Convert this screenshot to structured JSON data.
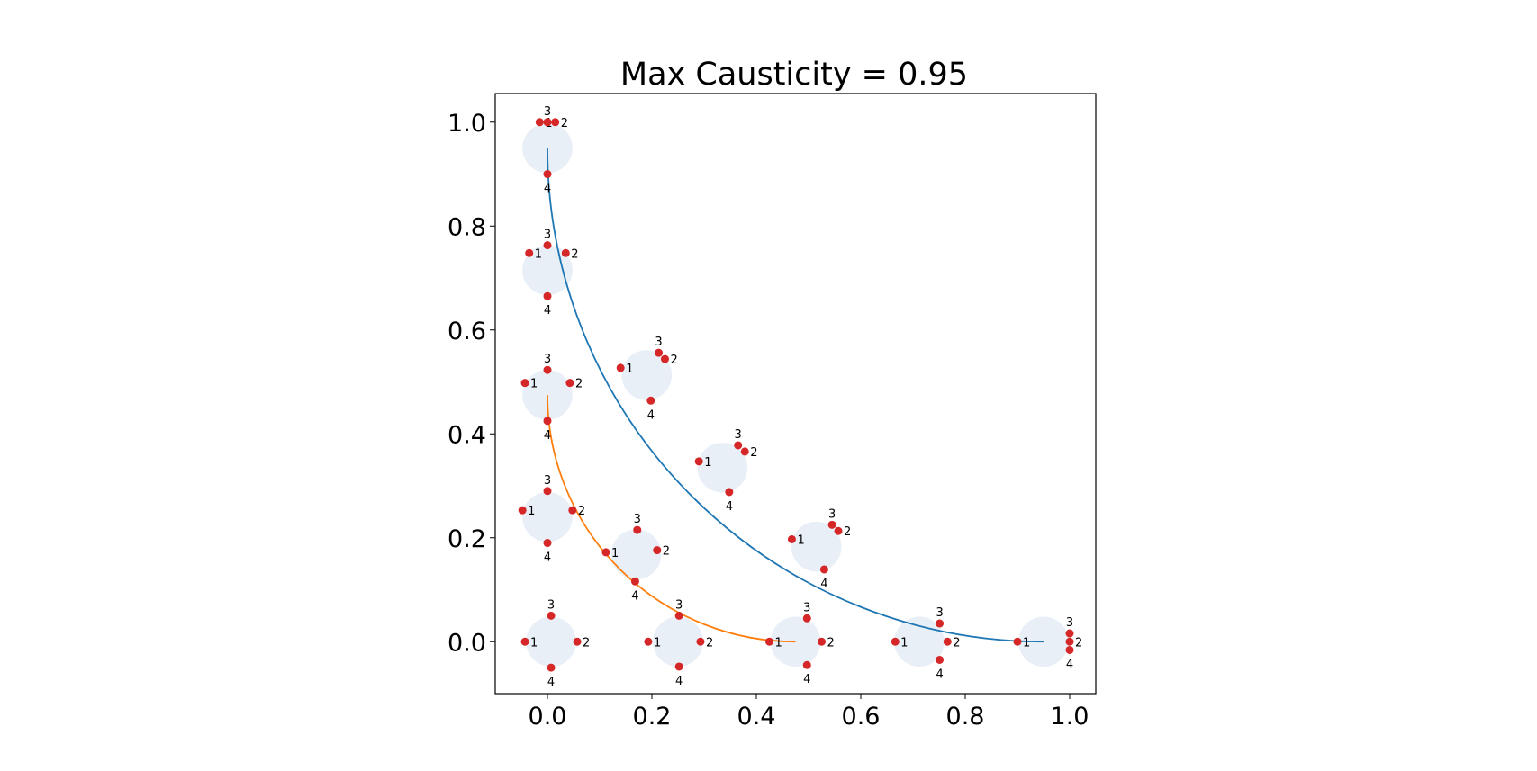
{
  "chart_data": {
    "type": "scatter",
    "title": "Max Causticity = 0.95",
    "xlabel": "",
    "ylabel": "",
    "xlim": [
      -0.1,
      1.05
    ],
    "ylim": [
      -0.1,
      1.055
    ],
    "xticks": [
      "0.0",
      "0.2",
      "0.4",
      "0.6",
      "0.8",
      "1.0"
    ],
    "yticks": [
      "0.0",
      "0.2",
      "0.4",
      "0.6",
      "0.8",
      "1.0"
    ],
    "xtick_values": [
      0,
      0.2,
      0.4,
      0.6,
      0.8,
      1.0
    ],
    "ytick_values": [
      0,
      0.2,
      0.4,
      0.6,
      0.8,
      1.0
    ],
    "grid": false,
    "colors": {
      "curve_outer": "#1f77b4",
      "curve_inner": "#ff7f0e",
      "points": "#d62728",
      "circles": "#e8eff7"
    },
    "curves": [
      {
        "center": [
          0,
          0
        ],
        "radius": 0.95,
        "color": "#1f77b4"
      },
      {
        "center": [
          0,
          0
        ],
        "radius": 0.475,
        "color": "#ff7f0e"
      }
    ],
    "circle_radius": 0.048,
    "groups": [
      {
        "center": [
          0.0,
          0.95
        ],
        "points": [
          {
            "label": "1",
            "x": -0.015,
            "y": 1.0
          },
          {
            "label": "2",
            "x": 0.015,
            "y": 1.0
          },
          {
            "label": "3",
            "x": 0.0,
            "y": 1.0
          },
          {
            "label": "4",
            "x": 0.0,
            "y": 0.9
          }
        ]
      },
      {
        "center": [
          0.0,
          0.715
        ],
        "points": [
          {
            "label": "1",
            "x": -0.035,
            "y": 0.748
          },
          {
            "label": "2",
            "x": 0.035,
            "y": 0.748
          },
          {
            "label": "3",
            "x": 0.0,
            "y": 0.763
          },
          {
            "label": "4",
            "x": 0.0,
            "y": 0.665
          }
        ]
      },
      {
        "center": [
          0.0,
          0.475
        ],
        "points": [
          {
            "label": "1",
            "x": -0.043,
            "y": 0.498
          },
          {
            "label": "2",
            "x": 0.043,
            "y": 0.498
          },
          {
            "label": "3",
            "x": 0.0,
            "y": 0.523
          },
          {
            "label": "4",
            "x": 0.0,
            "y": 0.425
          }
        ]
      },
      {
        "center": [
          0.0,
          0.24
        ],
        "points": [
          {
            "label": "1",
            "x": -0.048,
            "y": 0.253
          },
          {
            "label": "2",
            "x": 0.048,
            "y": 0.253
          },
          {
            "label": "3",
            "x": 0.0,
            "y": 0.29
          },
          {
            "label": "4",
            "x": 0.0,
            "y": 0.19
          }
        ]
      },
      {
        "center": [
          0.007,
          0.0
        ],
        "points": [
          {
            "label": "1",
            "x": -0.043,
            "y": 0.0
          },
          {
            "label": "2",
            "x": 0.057,
            "y": 0.0
          },
          {
            "label": "3",
            "x": 0.007,
            "y": 0.05
          },
          {
            "label": "4",
            "x": 0.007,
            "y": -0.05
          }
        ]
      },
      {
        "center": [
          0.19,
          0.513
        ],
        "points": [
          {
            "label": "1",
            "x": 0.14,
            "y": 0.527
          },
          {
            "label": "2",
            "x": 0.225,
            "y": 0.544
          },
          {
            "label": "3",
            "x": 0.213,
            "y": 0.556
          },
          {
            "label": "4",
            "x": 0.198,
            "y": 0.464
          }
        ]
      },
      {
        "center": [
          0.335,
          0.335
        ],
        "points": [
          {
            "label": "1",
            "x": 0.29,
            "y": 0.347
          },
          {
            "label": "2",
            "x": 0.378,
            "y": 0.366
          },
          {
            "label": "3",
            "x": 0.365,
            "y": 0.378
          },
          {
            "label": "4",
            "x": 0.348,
            "y": 0.288
          }
        ]
      },
      {
        "center": [
          0.17,
          0.168
        ],
        "points": [
          {
            "label": "1",
            "x": 0.112,
            "y": 0.172
          },
          {
            "label": "2",
            "x": 0.21,
            "y": 0.176
          },
          {
            "label": "3",
            "x": 0.172,
            "y": 0.215
          },
          {
            "label": "4",
            "x": 0.168,
            "y": 0.116
          }
        ]
      },
      {
        "center": [
          0.515,
          0.183
        ],
        "points": [
          {
            "label": "1",
            "x": 0.468,
            "y": 0.197
          },
          {
            "label": "2",
            "x": 0.557,
            "y": 0.213
          },
          {
            "label": "3",
            "x": 0.545,
            "y": 0.225
          },
          {
            "label": "4",
            "x": 0.53,
            "y": 0.139
          }
        ]
      },
      {
        "center": [
          0.25,
          0.0
        ],
        "points": [
          {
            "label": "1",
            "x": 0.193,
            "y": 0.0
          },
          {
            "label": "2",
            "x": 0.293,
            "y": 0.0
          },
          {
            "label": "3",
            "x": 0.252,
            "y": 0.05
          },
          {
            "label": "4",
            "x": 0.252,
            "y": -0.048
          }
        ]
      },
      {
        "center": [
          0.475,
          0.0
        ],
        "points": [
          {
            "label": "1",
            "x": 0.425,
            "y": 0.0
          },
          {
            "label": "2",
            "x": 0.525,
            "y": 0.0
          },
          {
            "label": "3",
            "x": 0.497,
            "y": 0.045
          },
          {
            "label": "4",
            "x": 0.497,
            "y": -0.045
          }
        ]
      },
      {
        "center": [
          0.712,
          0.0
        ],
        "points": [
          {
            "label": "1",
            "x": 0.666,
            "y": 0.0
          },
          {
            "label": "2",
            "x": 0.766,
            "y": 0.0
          },
          {
            "label": "3",
            "x": 0.751,
            "y": 0.035
          },
          {
            "label": "4",
            "x": 0.751,
            "y": -0.035
          }
        ]
      },
      {
        "center": [
          0.95,
          0.0
        ],
        "points": [
          {
            "label": "1",
            "x": 0.9,
            "y": 0.0
          },
          {
            "label": "2",
            "x": 1.0,
            "y": 0.0
          },
          {
            "label": "3",
            "x": 1.0,
            "y": 0.016
          },
          {
            "label": "4",
            "x": 1.0,
            "y": -0.016
          }
        ]
      }
    ]
  }
}
